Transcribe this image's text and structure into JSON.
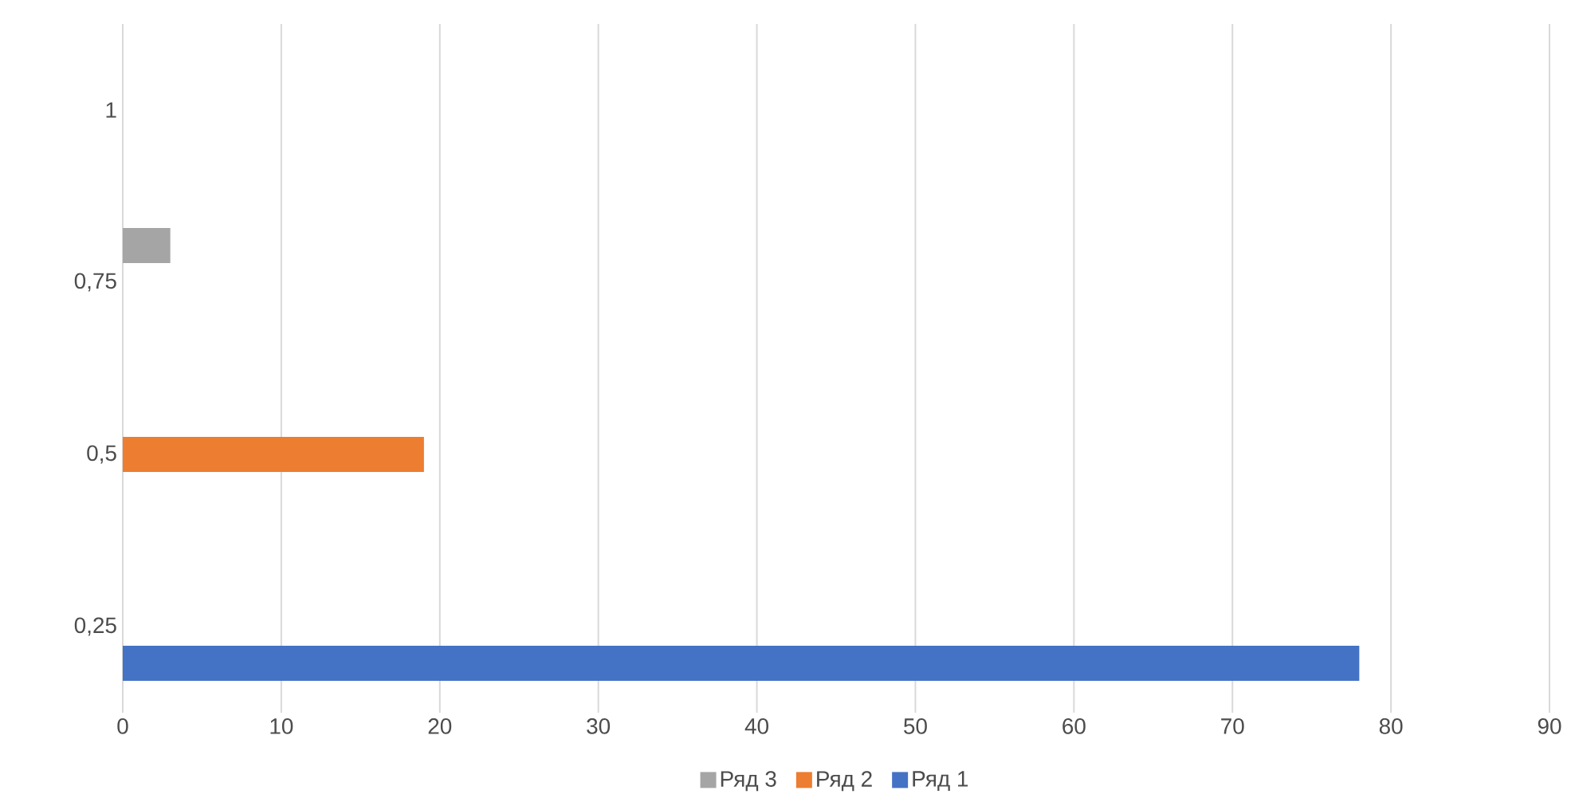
{
  "chart_data": {
    "type": "bar",
    "orientation": "horizontal",
    "categories": [
      "1",
      "0,75",
      "0,5",
      "0,25"
    ],
    "series": [
      {
        "name": "Ряд 1",
        "color": "#4472c4",
        "values": [
          null,
          null,
          null,
          78
        ]
      },
      {
        "name": "Ряд 2",
        "color": "#ed7d31",
        "values": [
          null,
          null,
          19,
          null
        ]
      },
      {
        "name": "Ряд 3",
        "color": "#a5a5a5",
        "values": [
          null,
          3,
          null,
          null
        ]
      }
    ],
    "xlim": [
      0,
      90
    ],
    "xticks": [
      0,
      10,
      20,
      30,
      40,
      50,
      60,
      70,
      80,
      90
    ],
    "grid": "x",
    "legend": "bottom"
  }
}
